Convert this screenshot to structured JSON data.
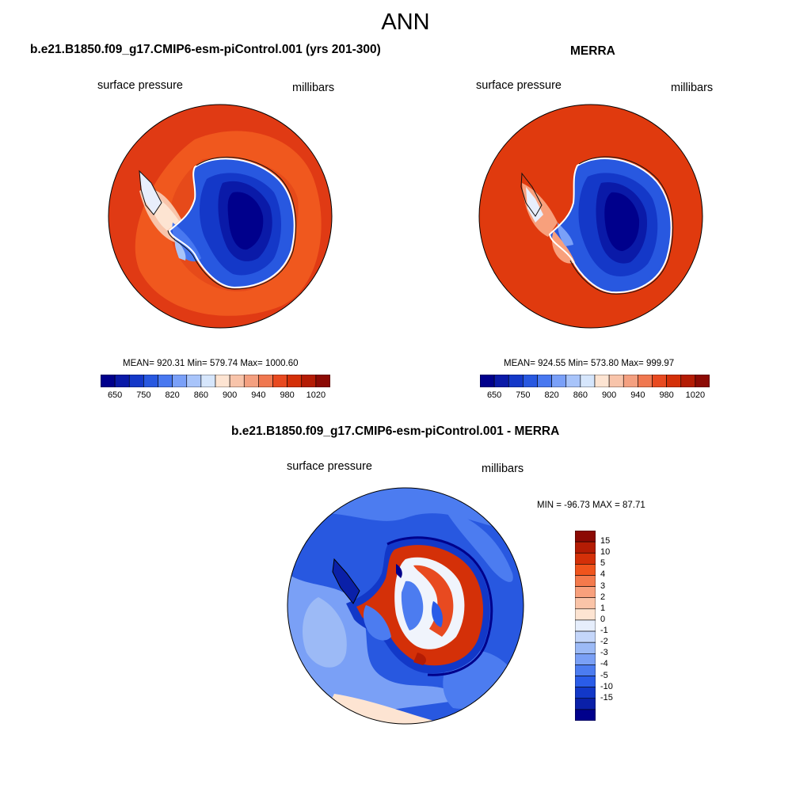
{
  "title": "ANN",
  "panels": [
    {
      "title": "b.e21.B1850.f09_g17.CMIP6-esm-piControl.001 (yrs 201-300)",
      "variable": "surface pressure",
      "units": "millibars",
      "stats": "MEAN= 920.31  Min= 579.74  Max= 1000.60"
    },
    {
      "title": "MERRA",
      "variable": "surface pressure",
      "units": "millibars",
      "stats": "MEAN= 924.55  Min= 573.80  Max= 999.97"
    },
    {
      "title": "b.e21.B1850.f09_g17.CMIP6-esm-piControl.001 - MERRA",
      "variable": "surface pressure",
      "units": "millibars",
      "stats": "MIN = -96.73 MAX =  87.71"
    }
  ],
  "colorbar_abs": {
    "colors": [
      "#00008c",
      "#0a1aa8",
      "#1438c8",
      "#2858e0",
      "#4878f0",
      "#7aa0f8",
      "#a8c4fa",
      "#d6e6fc",
      "#fde4d2",
      "#f8c4aa",
      "#f4a080",
      "#f07850",
      "#e84a20",
      "#d43008",
      "#b41c04",
      "#8c0a04"
    ],
    "labels": [
      "650",
      "750",
      "820",
      "860",
      "900",
      "940",
      "980",
      "1020"
    ]
  },
  "colorbar_diff": {
    "colors": [
      "#8c0a04",
      "#b41c04",
      "#d43008",
      "#f0541c",
      "#f47a4c",
      "#f8a07c",
      "#fac4a8",
      "#fde4d2",
      "#e6eefc",
      "#c4d6fa",
      "#9cbaf6",
      "#7aa0f6",
      "#4c7cf0",
      "#2a5ce8",
      "#1238c8",
      "#0a20a8",
      "#00008c"
    ],
    "labels": [
      "15",
      "10",
      "5",
      "4",
      "3",
      "2",
      "1",
      "0",
      "-1",
      "-2",
      "-3",
      "-4",
      "-5",
      "-10",
      "-15"
    ]
  }
}
